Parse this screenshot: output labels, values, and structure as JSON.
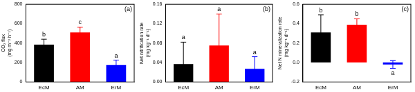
{
  "chart_data": [
    {
      "type": "bar",
      "title": "(a)",
      "categories": [
        "EcM",
        "AM",
        "ErM"
      ],
      "values": [
        385,
        510,
        175
      ],
      "errors": [
        55,
        55,
        50
      ],
      "colors": [
        "#000000",
        "#ff0000",
        "#0000ff"
      ],
      "annotations": [
        "b",
        "c",
        "a"
      ],
      "y_label": "CO₂ flux (mg m⁻² h⁻¹)",
      "ylim": [
        0,
        800
      ],
      "yticks": [
        0,
        200,
        400,
        600,
        800
      ],
      "grid": false
    },
    {
      "type": "bar",
      "title": "(b)",
      "categories": [
        "EcM",
        "AM",
        "ErM"
      ],
      "values": [
        0.037,
        0.075,
        0.027
      ],
      "errors": [
        0.045,
        0.065,
        0.025
      ],
      "colors": [
        "#000000",
        "#ff0000",
        "#0000ff"
      ],
      "annotations": [
        "a",
        "a",
        "a"
      ],
      "y_label": "Net nitrification rate (mg kg⁻¹ d⁻¹)",
      "ylim": [
        0,
        0.16
      ],
      "yticks": [
        {
          "value": 0,
          "label": "0.00"
        },
        0.04,
        0.08,
        0.12,
        0.16
      ],
      "grid": false
    },
    {
      "type": "bar",
      "title": "(c)",
      "categories": [
        "EcM",
        "AM",
        "ErM"
      ],
      "values": [
        0.31,
        0.39,
        -0.02
      ],
      "errors": [
        0.18,
        0.06,
        0.04
      ],
      "colors": [
        "#000000",
        "#ff0000",
        "#0000ff"
      ],
      "annotations": [
        "b",
        "b",
        "a"
      ],
      "y_label": "Net N mineralization rate (mg kg⁻¹ d⁻¹)",
      "ylim": [
        -0.2,
        0.6
      ],
      "yticks": [
        -0.2,
        {
          "value": 0,
          "label": "0.0"
        },
        0.2,
        0.4,
        0.6
      ],
      "grid": false
    }
  ]
}
